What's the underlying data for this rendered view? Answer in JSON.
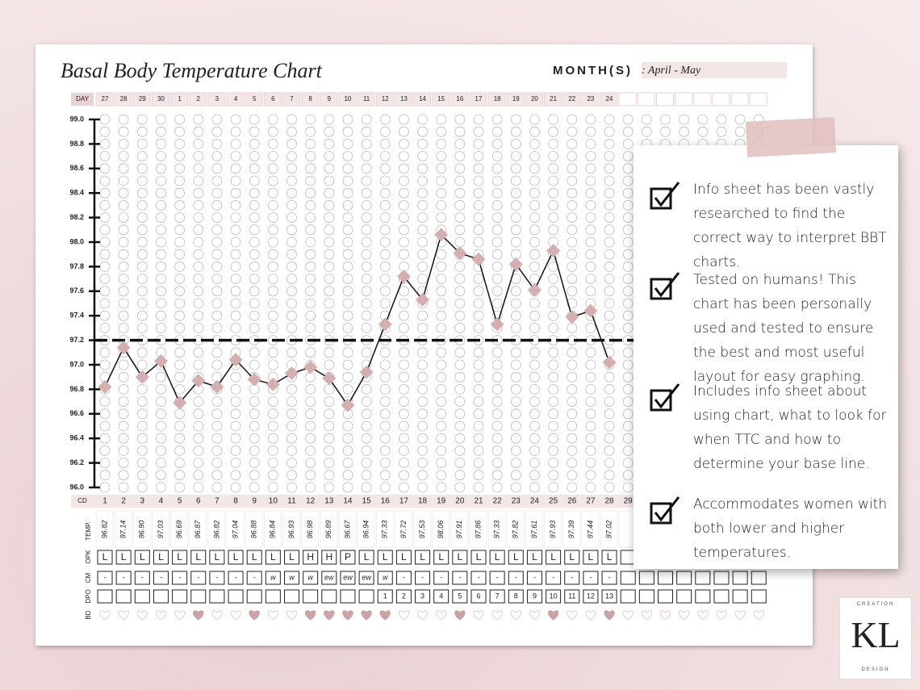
{
  "chart_data": {
    "type": "line",
    "title": "Basal Body Temperature Chart",
    "month_label": "MONTH(S)",
    "month_value": ": April - May",
    "day_label": "DAY",
    "cd_label": "CD",
    "days": [
      27,
      28,
      29,
      30,
      1,
      2,
      3,
      4,
      5,
      6,
      7,
      8,
      9,
      10,
      11,
      12,
      13,
      14,
      15,
      16,
      17,
      18,
      19,
      20,
      21,
      22,
      23,
      24
    ],
    "categories": [
      1,
      2,
      3,
      4,
      5,
      6,
      7,
      8,
      9,
      10,
      11,
      12,
      13,
      14,
      15,
      16,
      17,
      18,
      19,
      20,
      21,
      22,
      23,
      24,
      25,
      26,
      27,
      28,
      29
    ],
    "series": [
      {
        "name": "TEMP.",
        "color": "#111111",
        "values": [
          96.82,
          97.14,
          96.9,
          97.03,
          96.69,
          96.87,
          96.82,
          97.04,
          96.88,
          96.84,
          96.93,
          96.98,
          96.89,
          96.67,
          96.94,
          97.33,
          97.72,
          97.53,
          98.06,
          97.91,
          97.86,
          97.33,
          97.82,
          97.61,
          97.93,
          97.39,
          97.44,
          97.02,
          null
        ],
        "value_labels": [
          "96.82",
          "97.14",
          "96.90",
          "97.03",
          "96.69",
          "96.87",
          "96.82",
          "97.04",
          "96.88",
          "96.84",
          "96.93",
          "96.98",
          "96.89",
          "96.67",
          "96.94",
          "97.33",
          "97.72",
          "97.53",
          "98.06",
          "97.91",
          "97.86",
          "97.33",
          "97.82",
          "97.61",
          "97.93",
          "97.39",
          "97.44",
          "97.02",
          null
        ]
      }
    ],
    "coverline": 97.2,
    "ylim": [
      96,
      99
    ],
    "yticks": [
      {
        "value": 96,
        "label": "96.0"
      },
      96.2,
      96.4,
      96.6,
      96.8,
      {
        "value": 97,
        "label": "97.0"
      },
      97.2,
      97.4,
      97.6,
      97.8,
      {
        "value": 98,
        "label": "98.0"
      },
      98.2,
      98.4,
      98.6,
      98.8,
      {
        "value": 99,
        "label": "99.0"
      }
    ],
    "marker_color": "#d4aeb0"
  },
  "tracker": {
    "labels": {
      "opk": "OPK",
      "cm": "CM",
      "dpo": "DPO",
      "bd": "BD"
    },
    "opk": [
      "L",
      "L",
      "L",
      "L",
      "L",
      "L",
      "L",
      "L",
      "L",
      "L",
      "L",
      "H",
      "H",
      "P",
      "L",
      "L",
      "L",
      "L",
      "L",
      "L",
      "L",
      "L",
      "L",
      "L",
      "L",
      "L",
      "L",
      "L"
    ],
    "cm": [
      "-",
      "-",
      "-",
      "-",
      "-",
      "-",
      "-",
      "-",
      "-",
      "w",
      "w",
      "w",
      "ew",
      "ew",
      "ew",
      "w",
      "-",
      "-",
      "-",
      "-",
      "-",
      "-",
      "-",
      "-",
      "-",
      "-",
      "-",
      "-"
    ],
    "dpo": [
      null,
      null,
      null,
      null,
      null,
      null,
      null,
      null,
      null,
      null,
      null,
      null,
      null,
      null,
      null,
      1,
      2,
      3,
      4,
      5,
      6,
      7,
      8,
      9,
      10,
      11,
      12,
      13
    ],
    "bd": [
      false,
      false,
      false,
      false,
      false,
      true,
      false,
      false,
      true,
      false,
      false,
      true,
      true,
      true,
      true,
      true,
      false,
      false,
      false,
      true,
      false,
      false,
      false,
      false,
      true,
      false,
      false,
      true
    ]
  },
  "info": {
    "items": [
      "Info sheet has been vastly researched to find the correct way to interpret BBT charts.",
      "Tested on humans! This chart has been personally used and tested to ensure the best and most useful layout for easy graphing.",
      "Includes info sheet about using chart, what to look for when TTC and how to determine your base line.",
      "Accommodates women with both lower and higher temperatures."
    ]
  },
  "logo": {
    "top": "CREATION",
    "initials": "KL",
    "bottom": "DESIGN"
  }
}
